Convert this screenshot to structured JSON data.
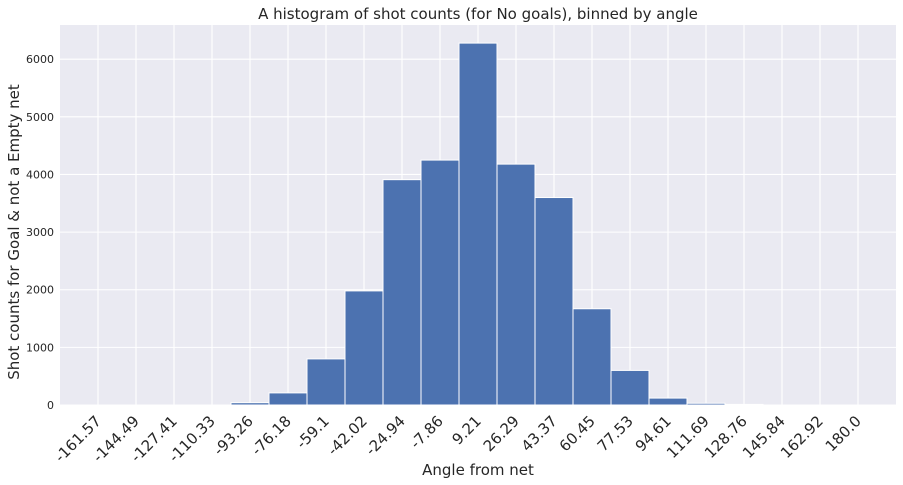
{
  "chart_data": {
    "type": "bar",
    "title": "A histogram of shot counts (for No goals), binned by angle",
    "xlabel": "Angle from net",
    "ylabel": "Shot counts for Goal & not a Empty net",
    "categories": [
      "-161.57",
      "-144.49",
      "-127.41",
      "-110.33",
      "-93.26",
      "-76.18",
      "-59.1",
      "-42.02",
      "-24.94",
      "-7.86",
      "9.21",
      "26.29",
      "43.37",
      "60.45",
      "77.53",
      "94.61",
      "111.69",
      "128.76",
      "145.84",
      "162.92",
      "180.0"
    ],
    "values": [
      0,
      0,
      0,
      0,
      40,
      210,
      800,
      1980,
      3910,
      4250,
      6280,
      4180,
      3600,
      1670,
      600,
      120,
      30,
      10,
      0,
      0,
      0
    ],
    "yticks": [
      0,
      1000,
      2000,
      3000,
      4000,
      5000,
      6000
    ],
    "ytick_labels": [
      "0",
      "1000",
      "2000",
      "3000",
      "4000",
      "5000",
      "6000"
    ],
    "ylim": [
      0,
      6594
    ],
    "xtick_rotation": 45,
    "grid": true,
    "background_color": "#eaeaf2",
    "bar_color": "#4c72b0",
    "grid_color": "#ffffff"
  }
}
